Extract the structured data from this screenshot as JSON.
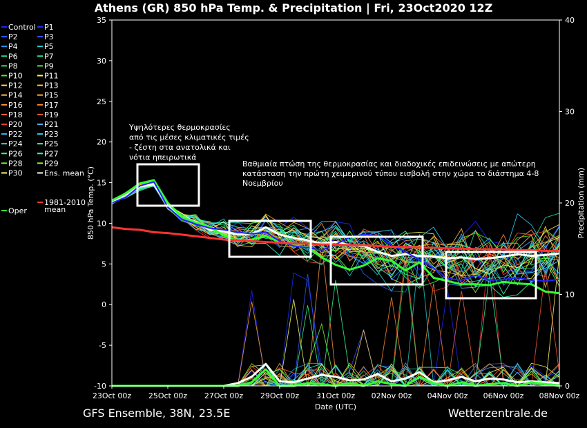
{
  "header": {
    "title": "Athens  (GR)  850 hPa Temp. & Precipitation | Fri, 23Oct2020 12Z"
  },
  "footer": {
    "left": "GFS Ensemble, 38N, 23.5E",
    "right": "Wetterzentrale.de"
  },
  "colors": {
    "background": "#000000",
    "frame": "#ffffff",
    "ens_mean": "#ffffff",
    "oper": "#33ff33",
    "control": "#2222ff",
    "climate_mean": "#ff3333"
  },
  "chart_data": {
    "type": "line",
    "xlabel": "Date (UTC)",
    "ylabel": "850 hPa Temp. (°C)",
    "y2label": "Precipitation (mm)",
    "ylim": [
      -10,
      35
    ],
    "y2lim": [
      0,
      40
    ],
    "yticks": [
      "35",
      "30",
      "25",
      "20",
      "15",
      "10",
      "5",
      "0",
      "-5",
      "-10"
    ],
    "y2ticks": [
      "40",
      "30",
      "20",
      "10",
      "0"
    ],
    "xticks": [
      "23Oct 00z",
      "25Oct 00z",
      "27Oct 00z",
      "29Oct 00z",
      "31Oct 00z",
      "02Nov 00z",
      "04Nov 00z",
      "06Nov 00z",
      "08Nov 00z"
    ],
    "grid": false,
    "x_hours": [
      0,
      12,
      24,
      36,
      48,
      60,
      72,
      84,
      96,
      108,
      120,
      132,
      144,
      156,
      168,
      180,
      192,
      204,
      216,
      228,
      240,
      252,
      264,
      276,
      288,
      300,
      312,
      324,
      336,
      348,
      360,
      372,
      384
    ],
    "legend": [
      {
        "label": "Control",
        "color": "#2222ff"
      },
      {
        "label": "P1",
        "color": "#1133ff"
      },
      {
        "label": "P2",
        "color": "#2266ff"
      },
      {
        "label": "P3",
        "color": "#3355ff"
      },
      {
        "label": "P4",
        "color": "#2299ff"
      },
      {
        "label": "P5",
        "color": "#22cccc"
      },
      {
        "label": "P6",
        "color": "#22ddaa"
      },
      {
        "label": "P7",
        "color": "#22ee99"
      },
      {
        "label": "P8",
        "color": "#22ee66"
      },
      {
        "label": "P9",
        "color": "#44ee44"
      },
      {
        "label": "P10",
        "color": "#55ee22"
      },
      {
        "label": "P11",
        "color": "#ffff33"
      },
      {
        "label": "P12",
        "color": "#ffdd55"
      },
      {
        "label": "P13",
        "color": "#ffcc44"
      },
      {
        "label": "P14",
        "color": "#ffbb44"
      },
      {
        "label": "P15",
        "color": "#ffaa33"
      },
      {
        "label": "P16",
        "color": "#ff9944"
      },
      {
        "label": "P17",
        "color": "#ff8833"
      },
      {
        "label": "P18",
        "color": "#ff6633"
      },
      {
        "label": "P19",
        "color": "#ff5533"
      },
      {
        "label": "P20",
        "color": "#ff3333"
      },
      {
        "label": "P21",
        "color": "#55aaff"
      },
      {
        "label": "P22",
        "color": "#33bbff"
      },
      {
        "label": "P23",
        "color": "#33ccff"
      },
      {
        "label": "P24",
        "color": "#33ddee"
      },
      {
        "label": "P25",
        "color": "#33ffcc"
      },
      {
        "label": "P26",
        "color": "#33ff99"
      },
      {
        "label": "P27",
        "color": "#33ffaa"
      },
      {
        "label": "P28",
        "color": "#66ff44"
      },
      {
        "label": "P29",
        "color": "#88ff33"
      },
      {
        "label": "P30",
        "color": "#ffff66"
      },
      {
        "label": "Ens. mean",
        "color": "#ffffff"
      },
      {
        "label": "Oper",
        "color": "#33ff33"
      },
      {
        "label": "1981-2010 mean",
        "color": "#ff3333"
      }
    ],
    "series": [
      {
        "name": "Ens. mean",
        "axis": "temp",
        "color": "#ffffff",
        "values": [
          12.7,
          13.5,
          14.5,
          14.8,
          12.2,
          10.8,
          10.2,
          9.2,
          9.0,
          8.6,
          8.7,
          9.5,
          8.6,
          8.2,
          7.9,
          7.5,
          7.7,
          7.3,
          7.2,
          6.5,
          6.0,
          6.2,
          6.0,
          5.9,
          5.7,
          5.8,
          5.6,
          5.7,
          5.9,
          6.2,
          6.0,
          6.1,
          6.3
        ]
      },
      {
        "name": "Oper",
        "axis": "temp",
        "color": "#33ff33",
        "values": [
          12.8,
          13.7,
          14.9,
          15.3,
          12.5,
          10.8,
          10.1,
          9.5,
          8.5,
          7.8,
          8.0,
          8.4,
          7.7,
          7.3,
          7.0,
          5.8,
          4.9,
          4.3,
          4.8,
          5.7,
          5.4,
          4.2,
          5.2,
          3.3,
          2.9,
          2.5,
          2.5,
          2.4,
          2.8,
          2.6,
          2.5,
          1.6,
          1.4
        ]
      },
      {
        "name": "Control",
        "axis": "temp",
        "color": "#2222ff",
        "values": [
          12.5,
          13.2,
          14.6,
          15.1,
          12.0,
          10.5,
          9.9,
          9.4,
          9.2,
          8.9,
          8.7,
          8.9,
          7.8,
          7.2,
          7.0,
          6.7,
          7.4,
          8.3,
          8.6,
          8.5,
          7.3,
          6.5,
          5.5,
          4.5,
          3.2,
          3.0,
          3.6,
          3.0,
          3.1,
          3.3,
          3.0,
          2.9,
          3.1
        ]
      },
      {
        "name": "1981-2010 mean",
        "axis": "temp",
        "color": "#ff3333",
        "values": [
          9.5,
          9.3,
          9.2,
          8.9,
          8.8,
          8.6,
          8.4,
          8.2,
          8.0,
          7.9,
          7.8,
          7.7,
          7.6,
          7.5,
          7.5,
          7.4,
          7.4,
          7.3,
          7.3,
          7.2,
          7.1,
          7.1,
          7.0,
          7.0,
          6.9,
          6.9,
          6.8,
          6.8,
          6.8,
          6.7,
          6.7,
          6.6,
          6.6
        ]
      },
      {
        "name": "Ens. mean",
        "axis": "precip",
        "color": "#ffffff",
        "values": [
          0,
          0,
          0,
          0,
          0,
          0,
          0,
          0,
          0,
          0.3,
          1.0,
          2.4,
          0.5,
          0.4,
          0.8,
          1.2,
          1.0,
          0.6,
          0.7,
          1.3,
          0.5,
          0.8,
          1.5,
          0.4,
          0.6,
          1.0,
          0.5,
          0.8,
          0.7,
          0.4,
          0.5,
          0.4,
          0.3
        ]
      },
      {
        "name": "Oper",
        "axis": "precip",
        "color": "#33ff33",
        "values": [
          0,
          0,
          0,
          0,
          0,
          0,
          0,
          0,
          0,
          0,
          0.4,
          1.8,
          0,
          0,
          0.3,
          0.2,
          0,
          0.3,
          0,
          0.5,
          0.2,
          0,
          1.0,
          0.3,
          0,
          0.4,
          0,
          0.2,
          0.3,
          0,
          0.4,
          0.2,
          0
        ]
      }
    ]
  },
  "annotations": {
    "box1_lines": [
      "Υψηλότερες θερμοκρασίες",
      "από τις μέσες κλιματικές τιμές",
      "- ζέστη στα ανατολικά και",
      "νότια ηπειρωτικά"
    ],
    "box2_lines": [
      "Βαθμιαία πτώση της θερμοκρασίας και διαδοχικές επιδεινώσεις με απώτερη",
      "κατάσταση την πρώτη χειμερινού τύπου εισβολή στην χώρα το διάστημα 4-8",
      "Νοεμβρίου"
    ]
  }
}
